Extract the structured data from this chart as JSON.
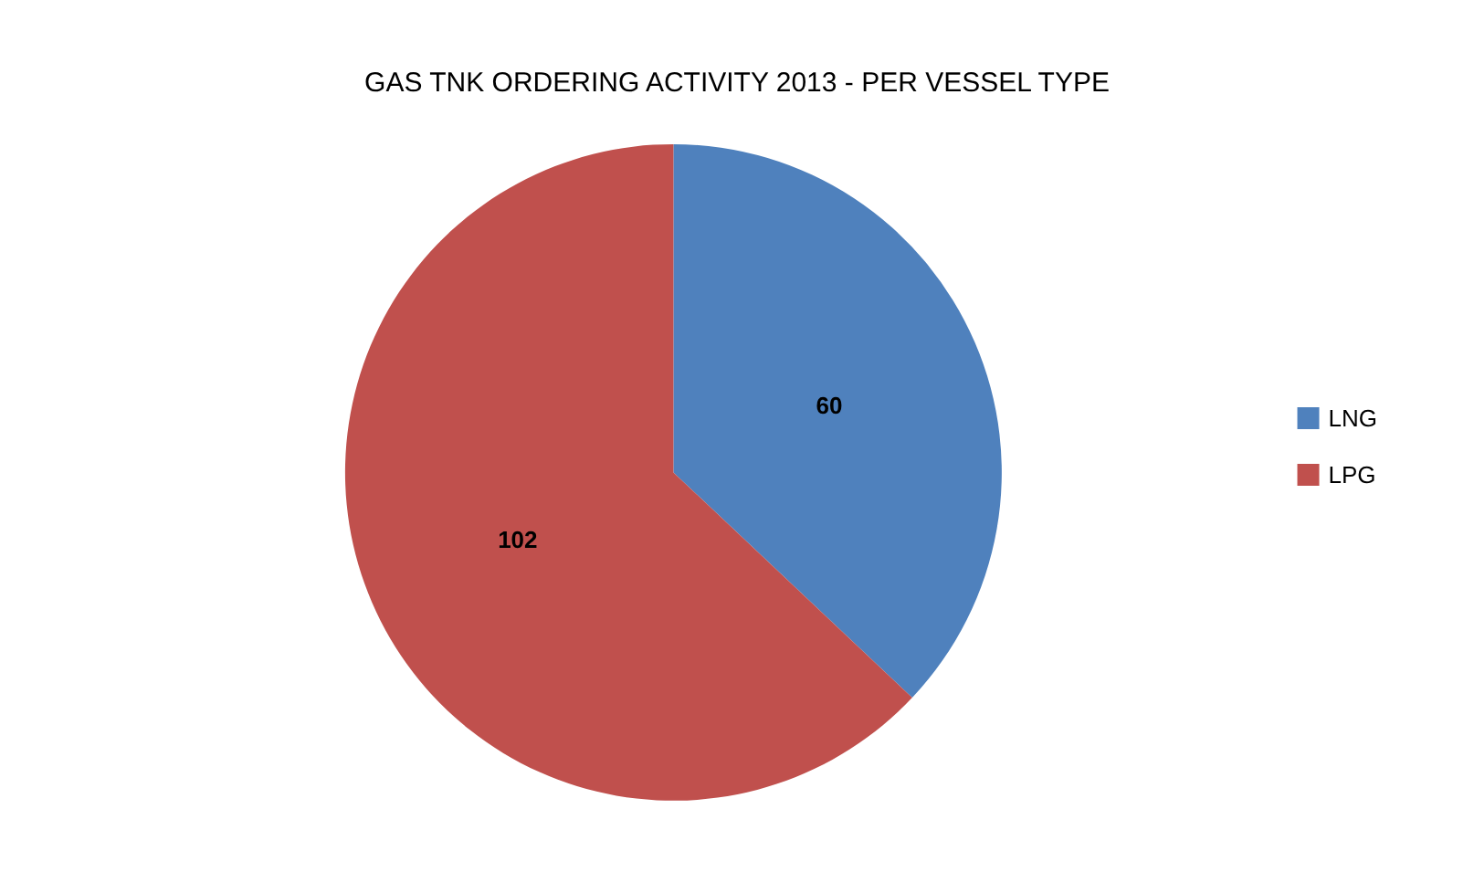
{
  "chart_data": {
    "type": "pie",
    "title": "GAS TNK ORDERING ACTIVITY 2013 - PER VESSEL TYPE",
    "categories": [
      "LNG",
      "LPG"
    ],
    "values": [
      60,
      102
    ],
    "colors": [
      "#4f81bd",
      "#c0504d"
    ],
    "data_labels": true,
    "legend": "right"
  }
}
